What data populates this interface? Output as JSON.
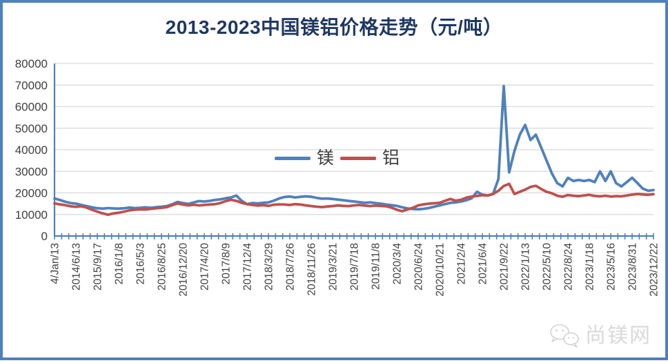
{
  "page": {
    "background": "#ffffff",
    "frame_border_color": "#4f81bd"
  },
  "title": {
    "text": "2013-2023中国镁铝价格走势（元/吨）",
    "color": "#1f3864"
  },
  "legend": {
    "items": [
      {
        "label": "镁",
        "color": "#4f81bd"
      },
      {
        "label": "铝",
        "color": "#c0504d"
      }
    ]
  },
  "watermark": {
    "icon": "wechat-icon",
    "text": "尚镁网",
    "color": "#d9d9d9"
  },
  "chart_data": {
    "type": "line",
    "title": "2013-2023中国镁铝价格走势（元/吨）",
    "ylabel": "",
    "xlabel": "",
    "grid": true,
    "legend_position": "inside-center",
    "axis_color": "#4f81bd",
    "gridline_color": "#d9d9d9",
    "tick_label_color": "#404040",
    "y_axis": {
      "min": 0,
      "max": 80000,
      "step": 10000,
      "tick_labels": [
        "0",
        "10000",
        "20000",
        "30000",
        "40000",
        "50000",
        "60000",
        "70000",
        "80000"
      ]
    },
    "x_tick_labels": [
      "4/Jan/13",
      "2014/6/13",
      "2015/9/17",
      "2016/1/8",
      "2016/5/3",
      "2016/8/25",
      "2016/12/20",
      "2017/4/20",
      "2017/8/9",
      "2017/12/4",
      "2018/3/29",
      "2018/7/26",
      "2018/11/26",
      "2019/3/21",
      "2019/7/18",
      "2019/11/8",
      "2020/3/4",
      "2020/6/24",
      "2020/10/21",
      "2021/2/4",
      "2021/6/4",
      "2021/9/22",
      "2022/1/13",
      "2022/5/10",
      "2022/8/24",
      "2023/1/18",
      "2023/5/16",
      "2023/8/31",
      "2023/12/22"
    ],
    "points_per_label_interval": 4,
    "minor_ticks_per_label_interval": 3,
    "series": [
      {
        "name": "镁",
        "color": "#4f81bd",
        "values": [
          17400,
          16700,
          15900,
          15300,
          15000,
          14400,
          13900,
          13300,
          12900,
          12700,
          12950,
          12800,
          12700,
          12850,
          13200,
          12950,
          13100,
          13300,
          13050,
          13400,
          13600,
          13900,
          14700,
          15800,
          15300,
          14900,
          15600,
          16200,
          16000,
          16300,
          16700,
          17000,
          17500,
          17900,
          18800,
          16300,
          14800,
          15300,
          15100,
          15400,
          15600,
          16400,
          17400,
          18100,
          18300,
          17900,
          18200,
          18400,
          18200,
          17700,
          17300,
          17400,
          17200,
          16900,
          16600,
          16300,
          16000,
          15700,
          15400,
          15600,
          15300,
          15000,
          14600,
          14300,
          14000,
          13300,
          12800,
          12500,
          12400,
          12600,
          13000,
          13600,
          14200,
          14800,
          15400,
          15600,
          16000,
          16600,
          17500,
          20500,
          19200,
          18800,
          19500,
          26500,
          69500,
          29500,
          39500,
          47000,
          51500,
          44500,
          47000,
          41000,
          35000,
          29000,
          24500,
          23000,
          27000,
          25500,
          26000,
          25500,
          26000,
          25000,
          30000,
          25500,
          30000,
          24500,
          23000,
          25000,
          27000,
          24500,
          22000,
          21000,
          21300
        ]
      },
      {
        "name": "铝",
        "color": "#c0504d",
        "values": [
          15100,
          14700,
          14300,
          13800,
          13500,
          13800,
          13200,
          12200,
          11300,
          10500,
          9900,
          10500,
          10800,
          11300,
          11900,
          12200,
          12400,
          12300,
          12600,
          12900,
          13100,
          13400,
          14300,
          15100,
          14600,
          14200,
          14500,
          14200,
          14400,
          14600,
          14800,
          15300,
          16200,
          16800,
          16300,
          15400,
          14800,
          14400,
          14100,
          14300,
          14000,
          14500,
          14700,
          14600,
          14400,
          14800,
          14600,
          14200,
          13900,
          13600,
          13400,
          13700,
          13900,
          14200,
          14000,
          13900,
          14200,
          14400,
          14100,
          13900,
          14100,
          14000,
          13800,
          13200,
          12200,
          11500,
          12300,
          13100,
          14200,
          14700,
          15000,
          15200,
          15400,
          16300,
          17200,
          16400,
          16800,
          17800,
          18300,
          18600,
          18900,
          18800,
          19500,
          21000,
          23200,
          24200,
          19500,
          20500,
          21500,
          22800,
          23300,
          21800,
          20500,
          19800,
          18700,
          18200,
          19000,
          18700,
          18500,
          18800,
          19100,
          18600,
          18400,
          18700,
          18300,
          18500,
          18400,
          18800,
          19200,
          19500,
          19300,
          19100,
          19400
        ]
      }
    ]
  }
}
